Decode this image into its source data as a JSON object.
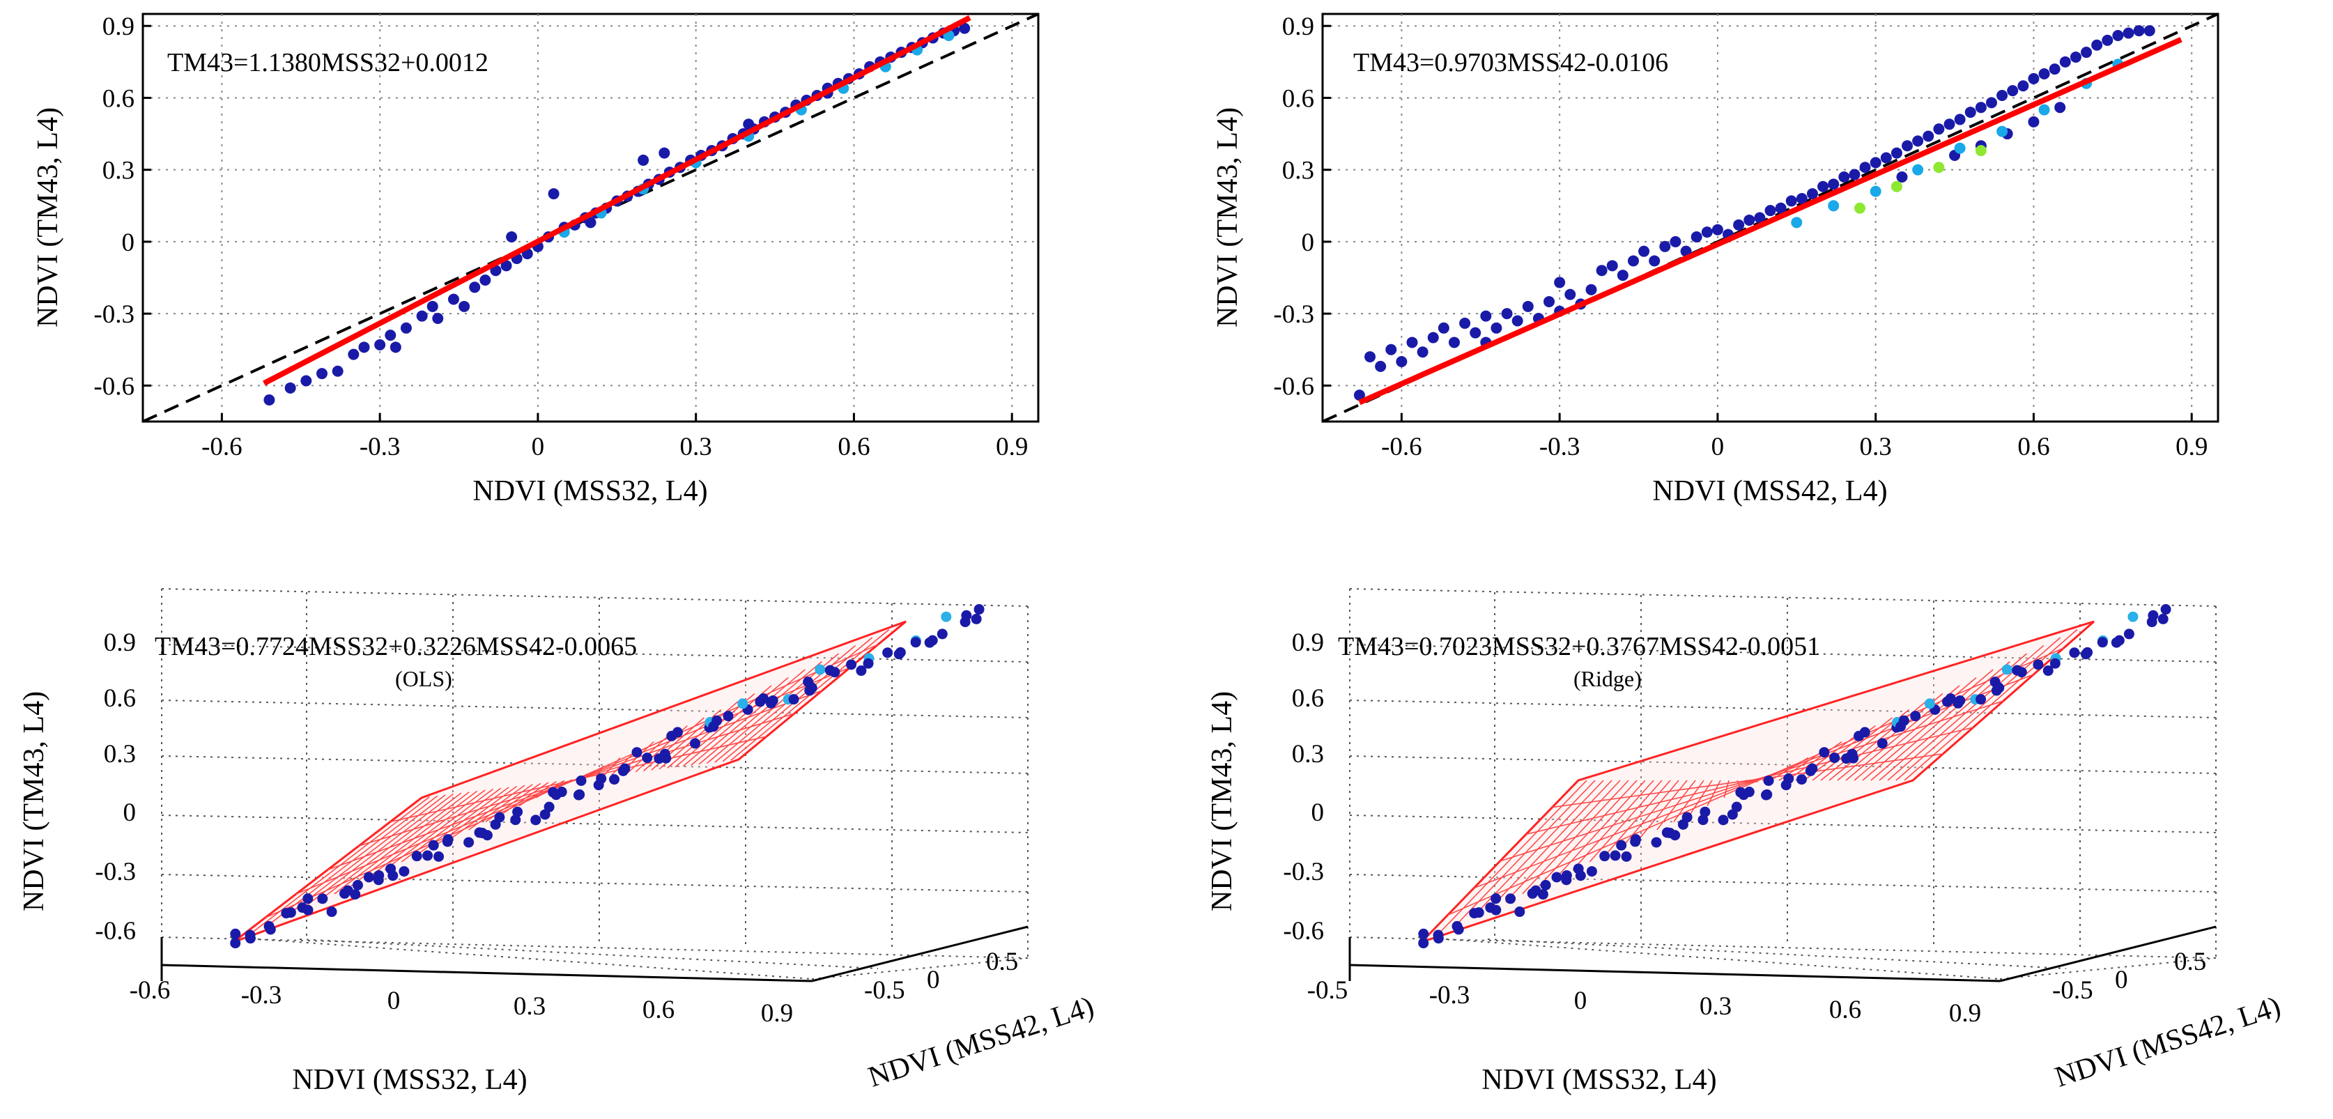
{
  "figure": {
    "panels": 4
  },
  "chart_data": [
    {
      "id": "top-left",
      "type": "scatter",
      "equation": "TM43=1.1380MSS32+0.0012",
      "xlabel": "NDVI (MSS32, L4)",
      "ylabel": "NDVI (TM43, L4)",
      "xlim": [
        -0.75,
        0.95
      ],
      "ylim": [
        -0.75,
        0.95
      ],
      "xticks": [
        "-0.6",
        "-0.3",
        "0",
        "0.3",
        "0.6",
        "0.9"
      ],
      "xtick_values": [
        -0.6,
        -0.3,
        0,
        0.3,
        0.6,
        0.9
      ],
      "yticks": [
        "0.9",
        "0.6",
        "0.3",
        "0",
        "-0.3",
        "-0.6"
      ],
      "ytick_values": [
        0.9,
        0.6,
        0.3,
        0,
        -0.3,
        -0.6
      ],
      "fit": {
        "slope": 1.138,
        "intercept": 0.0012,
        "x_range": [
          -0.52,
          0.82
        ],
        "color": "#ff0000"
      },
      "identity_line": {
        "style": "dashed",
        "color": "#000000"
      },
      "series": [
        {
          "name": "points",
          "color": "#1a1aa8",
          "points": [
            [
              -0.51,
              -0.66
            ],
            [
              -0.47,
              -0.61
            ],
            [
              -0.44,
              -0.58
            ],
            [
              -0.41,
              -0.55
            ],
            [
              -0.38,
              -0.54
            ],
            [
              -0.35,
              -0.47
            ],
            [
              -0.33,
              -0.44
            ],
            [
              -0.3,
              -0.43
            ],
            [
              -0.28,
              -0.39
            ],
            [
              -0.27,
              -0.44
            ],
            [
              -0.25,
              -0.36
            ],
            [
              -0.22,
              -0.31
            ],
            [
              -0.2,
              -0.27
            ],
            [
              -0.19,
              -0.32
            ],
            [
              -0.16,
              -0.24
            ],
            [
              -0.14,
              -0.27
            ],
            [
              -0.12,
              -0.19
            ],
            [
              -0.1,
              -0.16
            ],
            [
              -0.08,
              -0.12
            ],
            [
              -0.06,
              -0.1
            ],
            [
              -0.04,
              -0.07
            ],
            [
              -0.02,
              -0.05
            ],
            [
              0,
              -0.02
            ],
            [
              0.02,
              0.02
            ],
            [
              0.03,
              0.2
            ],
            [
              0.05,
              0.06
            ],
            [
              0.07,
              0.07
            ],
            [
              0.09,
              0.1
            ],
            [
              0.11,
              0.12
            ],
            [
              0.13,
              0.14
            ],
            [
              0.15,
              0.17
            ],
            [
              0.17,
              0.19
            ],
            [
              0.19,
              0.21
            ],
            [
              0.21,
              0.24
            ],
            [
              0.23,
              0.26
            ],
            [
              0.25,
              0.29
            ],
            [
              0.27,
              0.31
            ],
            [
              0.29,
              0.34
            ],
            [
              0.31,
              0.36
            ],
            [
              0.33,
              0.38
            ],
            [
              0.35,
              0.4
            ],
            [
              0.37,
              0.43
            ],
            [
              0.39,
              0.45
            ],
            [
              0.41,
              0.47
            ],
            [
              0.43,
              0.5
            ],
            [
              0.45,
              0.52
            ],
            [
              0.47,
              0.54
            ],
            [
              0.49,
              0.57
            ],
            [
              0.51,
              0.59
            ],
            [
              0.53,
              0.61
            ],
            [
              0.55,
              0.64
            ],
            [
              0.57,
              0.66
            ],
            [
              0.59,
              0.68
            ],
            [
              0.61,
              0.7
            ],
            [
              0.63,
              0.73
            ],
            [
              0.65,
              0.75
            ],
            [
              0.67,
              0.77
            ],
            [
              0.69,
              0.79
            ],
            [
              0.71,
              0.81
            ],
            [
              0.73,
              0.83
            ],
            [
              0.75,
              0.85
            ],
            [
              0.77,
              0.87
            ],
            [
              0.79,
              0.88
            ],
            [
              0.81,
              0.89
            ],
            [
              0.2,
              0.34
            ],
            [
              0.24,
              0.37
            ],
            [
              -0.05,
              0.02
            ],
            [
              0.1,
              0.08
            ],
            [
              0.4,
              0.49
            ],
            [
              0.55,
              0.62
            ]
          ]
        },
        {
          "name": "dense-core",
          "color": "#19a8e8",
          "points": [
            [
              0.05,
              0.04
            ],
            [
              0.12,
              0.12
            ],
            [
              0.2,
              0.22
            ],
            [
              0.3,
              0.33
            ],
            [
              0.4,
              0.44
            ],
            [
              0.5,
              0.55
            ],
            [
              0.58,
              0.64
            ],
            [
              0.66,
              0.73
            ],
            [
              0.72,
              0.8
            ],
            [
              0.78,
              0.86
            ]
          ]
        }
      ]
    },
    {
      "id": "top-right",
      "type": "scatter",
      "equation": "TM43=0.9703MSS42-0.0106",
      "xlabel": "NDVI (MSS42, L4)",
      "ylabel": "NDVI (TM43, L4)",
      "xlim": [
        -0.75,
        0.95
      ],
      "ylim": [
        -0.75,
        0.95
      ],
      "xticks": [
        "-0.6",
        "-0.3",
        "0",
        "0.3",
        "0.6",
        "0.9"
      ],
      "xtick_values": [
        -0.6,
        -0.3,
        0,
        0.3,
        0.6,
        0.9
      ],
      "yticks": [
        "0.9",
        "0.6",
        "0.3",
        "0",
        "-0.3",
        "-0.6"
      ],
      "ytick_values": [
        0.9,
        0.6,
        0.3,
        0,
        -0.3,
        -0.6
      ],
      "fit": {
        "slope": 0.9703,
        "intercept": -0.0106,
        "x_range": [
          -0.68,
          0.88
        ],
        "color": "#ff0000"
      },
      "identity_line": {
        "style": "dashed",
        "color": "#000000"
      },
      "series": [
        {
          "name": "points",
          "color": "#1a1aa8",
          "points": [
            [
              -0.68,
              -0.64
            ],
            [
              -0.66,
              -0.48
            ],
            [
              -0.64,
              -0.52
            ],
            [
              -0.62,
              -0.45
            ],
            [
              -0.6,
              -0.5
            ],
            [
              -0.58,
              -0.42
            ],
            [
              -0.56,
              -0.46
            ],
            [
              -0.54,
              -0.4
            ],
            [
              -0.52,
              -0.36
            ],
            [
              -0.5,
              -0.42
            ],
            [
              -0.48,
              -0.34
            ],
            [
              -0.46,
              -0.38
            ],
            [
              -0.44,
              -0.31
            ],
            [
              -0.42,
              -0.36
            ],
            [
              -0.4,
              -0.3
            ],
            [
              -0.38,
              -0.33
            ],
            [
              -0.36,
              -0.27
            ],
            [
              -0.34,
              -0.32
            ],
            [
              -0.32,
              -0.25
            ],
            [
              -0.3,
              -0.29
            ],
            [
              -0.28,
              -0.22
            ],
            [
              -0.26,
              -0.26
            ],
            [
              -0.24,
              -0.2
            ],
            [
              -0.22,
              -0.12
            ],
            [
              -0.2,
              -0.1
            ],
            [
              -0.18,
              -0.14
            ],
            [
              -0.16,
              -0.08
            ],
            [
              -0.14,
              -0.04
            ],
            [
              -0.12,
              -0.08
            ],
            [
              -0.1,
              -0.02
            ],
            [
              -0.08,
              0
            ],
            [
              -0.06,
              -0.04
            ],
            [
              -0.04,
              0.02
            ],
            [
              -0.02,
              0.04
            ],
            [
              0,
              0.05
            ],
            [
              0.02,
              0.03
            ],
            [
              0.04,
              0.07
            ],
            [
              0.06,
              0.09
            ],
            [
              0.08,
              0.1
            ],
            [
              0.1,
              0.13
            ],
            [
              0.12,
              0.14
            ],
            [
              0.14,
              0.17
            ],
            [
              0.16,
              0.18
            ],
            [
              0.18,
              0.2
            ],
            [
              0.2,
              0.23
            ],
            [
              0.22,
              0.24
            ],
            [
              0.24,
              0.27
            ],
            [
              0.26,
              0.28
            ],
            [
              0.28,
              0.31
            ],
            [
              0.3,
              0.33
            ],
            [
              0.32,
              0.35
            ],
            [
              0.34,
              0.37
            ],
            [
              0.36,
              0.4
            ],
            [
              0.38,
              0.42
            ],
            [
              0.4,
              0.44
            ],
            [
              0.42,
              0.47
            ],
            [
              0.44,
              0.49
            ],
            [
              0.46,
              0.51
            ],
            [
              0.48,
              0.54
            ],
            [
              0.5,
              0.56
            ],
            [
              0.52,
              0.58
            ],
            [
              0.54,
              0.61
            ],
            [
              0.56,
              0.63
            ],
            [
              0.58,
              0.65
            ],
            [
              0.6,
              0.68
            ],
            [
              0.62,
              0.7
            ],
            [
              0.64,
              0.72
            ],
            [
              0.66,
              0.75
            ],
            [
              0.68,
              0.77
            ],
            [
              0.7,
              0.79
            ],
            [
              0.72,
              0.82
            ],
            [
              0.74,
              0.84
            ],
            [
              0.76,
              0.86
            ],
            [
              0.78,
              0.87
            ],
            [
              0.8,
              0.88
            ],
            [
              0.82,
              0.88
            ],
            [
              0.5,
              0.4
            ],
            [
              0.55,
              0.45
            ],
            [
              0.35,
              0.27
            ],
            [
              0.6,
              0.5
            ],
            [
              0.65,
              0.56
            ],
            [
              0.45,
              0.36
            ],
            [
              -0.44,
              -0.42
            ],
            [
              -0.3,
              -0.17
            ]
          ]
        },
        {
          "name": "dense-core",
          "color": "#19a8e8",
          "points": [
            [
              0.15,
              0.08
            ],
            [
              0.22,
              0.15
            ],
            [
              0.3,
              0.21
            ],
            [
              0.38,
              0.3
            ],
            [
              0.46,
              0.39
            ],
            [
              0.54,
              0.46
            ],
            [
              0.62,
              0.55
            ],
            [
              0.7,
              0.66
            ],
            [
              0.76,
              0.74
            ]
          ]
        },
        {
          "name": "peak",
          "color": "#8ee830",
          "points": [
            [
              0.27,
              0.14
            ],
            [
              0.34,
              0.23
            ],
            [
              0.42,
              0.31
            ],
            [
              0.5,
              0.38
            ]
          ]
        }
      ]
    },
    {
      "id": "bottom-left",
      "type": "scatter",
      "equation": "TM43=0.7724MSS32+0.3226MSS42-0.0065",
      "note": "(OLS)",
      "xlabel": "NDVI (MSS32, L4)",
      "ylabel": "NDVI (TM43, L4)",
      "depth_label": "NDVI (MSS42, L4)",
      "xticks": [
        "-0.6",
        "-0.3",
        "0",
        "0.3",
        "0.6",
        "0.9"
      ],
      "yticks": [
        "0.9",
        "0.6",
        "0.3",
        "0",
        "-0.3",
        "-0.6"
      ],
      "depth_ticks": [
        "-0.5",
        "0",
        "0.5"
      ],
      "surface_color": "#ff0000",
      "points_color": "#1a1aa8"
    },
    {
      "id": "bottom-right",
      "type": "scatter",
      "equation": "TM43=0.7023MSS32+0.3767MSS42-0.0051",
      "note": "(Ridge)",
      "xlabel": "NDVI (MSS32, L4)",
      "ylabel": "NDVI (TM43, L4)",
      "depth_label": "NDVI (MSS42, L4)",
      "xticks": [
        "-0.5",
        "-0.3",
        "0",
        "0.3",
        "0.6",
        "0.9"
      ],
      "yticks": [
        "0.9",
        "0.6",
        "0.3",
        "0",
        "-0.3",
        "-0.6"
      ],
      "depth_ticks": [
        "-0.5",
        "0",
        "0.5"
      ],
      "surface_color": "#ff0000",
      "points_color": "#1a1aa8"
    }
  ]
}
